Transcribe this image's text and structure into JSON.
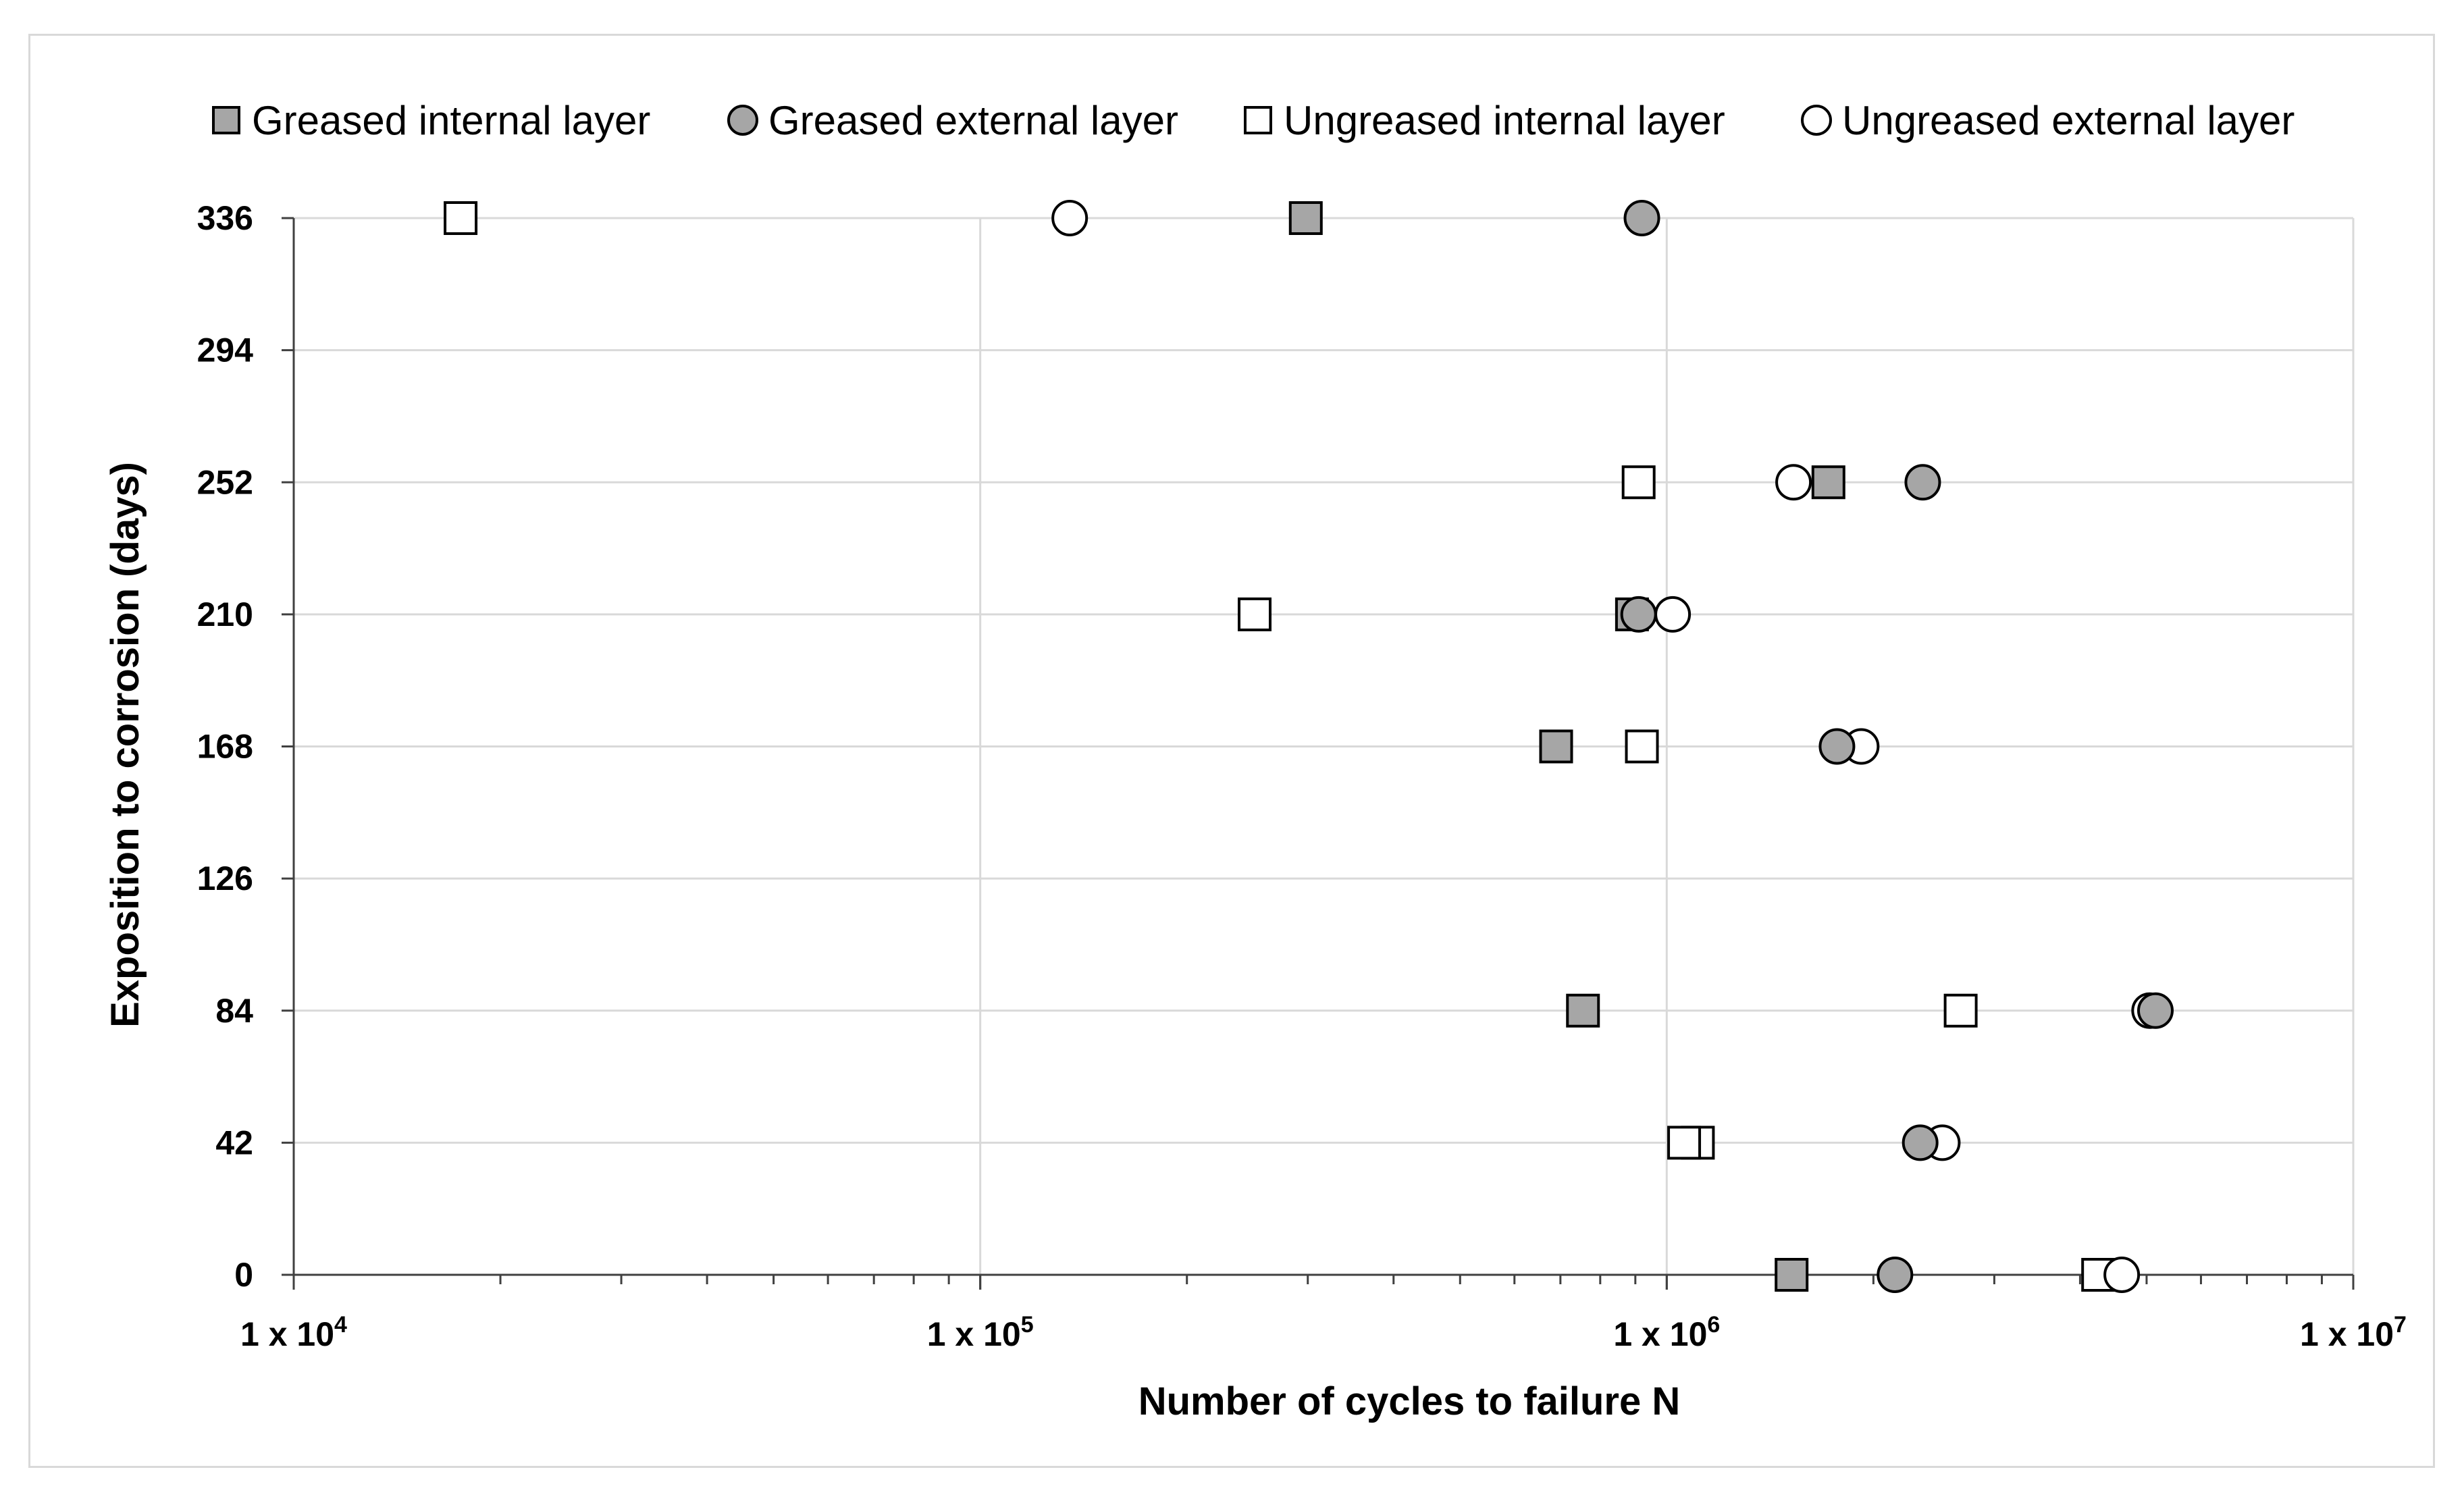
{
  "chart_data": {
    "type": "scatter",
    "title": "",
    "xlabel": "Number of cycles to failure N",
    "ylabel": "Exposition to corrosion (days)",
    "x_scale": "log",
    "xlim": [
      10000,
      10000000
    ],
    "ylim": [
      0,
      336
    ],
    "x_ticks": [
      {
        "value": 10000,
        "base": "1 x 10",
        "exp": "4"
      },
      {
        "value": 100000,
        "base": "1 x 10",
        "exp": "5"
      },
      {
        "value": 1000000,
        "base": "1 x 10",
        "exp": "6"
      },
      {
        "value": 10000000,
        "base": "1 x 10",
        "exp": "7"
      }
    ],
    "y_ticks": [
      "0",
      "42",
      "84",
      "126",
      "168",
      "210",
      "252",
      "294",
      "336"
    ],
    "grid": true,
    "legend_position": "top",
    "series": [
      {
        "name": "Greased internal layer",
        "marker": "square",
        "fill": "#a6a6a6",
        "points": [
          [
            298000,
            336
          ],
          [
            1720000,
            252
          ],
          [
            890000,
            210
          ],
          [
            690000,
            168
          ],
          [
            755000,
            84
          ],
          [
            1520000,
            0
          ]
        ]
      },
      {
        "name": "Greased external layer",
        "marker": "circle",
        "fill": "#a6a6a6",
        "points": [
          [
            920000,
            336
          ],
          [
            2360000,
            252
          ],
          [
            910000,
            210
          ],
          [
            1770000,
            168
          ],
          [
            5150000,
            84
          ],
          [
            2340000,
            42
          ],
          [
            2150000,
            0
          ]
        ]
      },
      {
        "name": "Ungreased internal layer",
        "marker": "square",
        "fill": "#ffffff",
        "points": [
          [
            17500,
            336
          ],
          [
            910000,
            252
          ],
          [
            251000,
            210
          ],
          [
            920000,
            168
          ],
          [
            2680000,
            84
          ],
          [
            1110000,
            42
          ],
          [
            1060000,
            42
          ],
          [
            4250000,
            0
          ]
        ]
      },
      {
        "name": "Ungreased external layer",
        "marker": "circle",
        "fill": "#ffffff",
        "points": [
          [
            135000,
            336
          ],
          [
            1530000,
            252
          ],
          [
            1020000,
            210
          ],
          [
            1920000,
            168
          ],
          [
            5050000,
            84
          ],
          [
            2520000,
            42
          ],
          [
            4600000,
            0
          ]
        ]
      }
    ]
  }
}
